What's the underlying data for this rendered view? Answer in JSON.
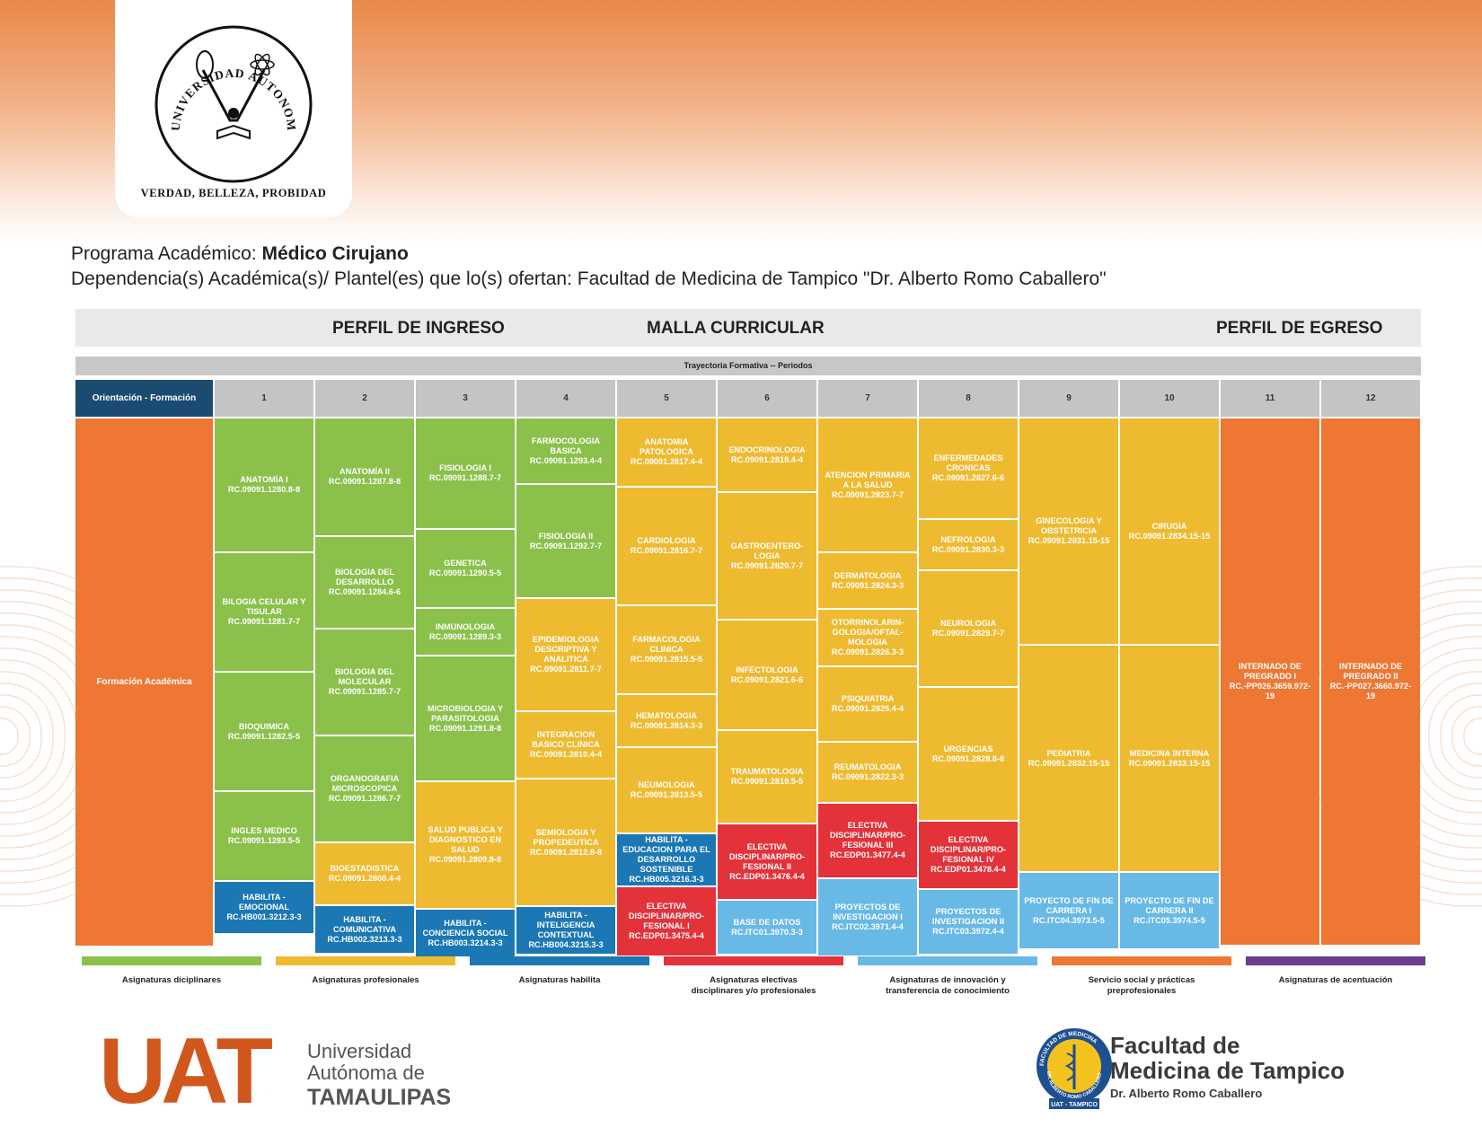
{
  "seal": {
    "ring_text": "UNIVERSIDAD AUTONOMA DE TAMAULIPAS",
    "motto": "VERDAD, BELLEZA, PROBIDAD"
  },
  "program": {
    "label": "Programa Académico:",
    "name": "Médico Cirujano",
    "dependency": "Dependencia(s) Académica(s)/ Plantel(es) que lo(s) ofertan: Facultad de Medicina de Tampico \"Dr. Alberto Romo Caballero\""
  },
  "headers": {
    "perfil_ingreso": "PERFIL DE INGRESO",
    "malla": "MALLA CURRICULAR",
    "perfil_egreso": "PERFIL DE EGRESO",
    "trayectoria": "Trayectoria Formativa -- Periodos",
    "orientacion": "Orientación - Formación",
    "formacion": "Formación Académica"
  },
  "colors": {
    "disciplinar": "#8bc04b",
    "profesional": "#eeba30",
    "habilita": "#1b78b5",
    "electiva": "#e3323a",
    "innovacion": "#69b9e7",
    "servicio": "#ee7734",
    "acentuacion": "#6b3d8f"
  },
  "periods": [
    "1",
    "2",
    "3",
    "4",
    "5",
    "6",
    "7",
    "8",
    "9",
    "10",
    "11",
    "12"
  ],
  "columns": [
    [
      {
        "name": "ANATOMÍA I",
        "code": "RC.09091.1280.8-8",
        "cat": "disciplinar",
        "span": 148
      },
      {
        "name": "BILOGIA CELULAR Y TISULAR",
        "code": "RC.09091.1281.7-7",
        "cat": "disciplinar",
        "span": 131
      },
      {
        "name": "BIOQUIMICA",
        "code": "RC.09091.1282.5-5",
        "cat": "disciplinar",
        "span": 131
      },
      {
        "name": "INGLES MEDICO",
        "code": "RC.09091.1283.5-5",
        "cat": "disciplinar",
        "span": 98
      },
      {
        "name": "HABILITA - EMOCIONAL",
        "code": "RC.HB001.3212.3-3",
        "cat": "habilita",
        "span": 57
      }
    ],
    [
      {
        "name": "ANATOMÍA II",
        "code": "RC.09091.1287.8-8",
        "cat": "disciplinar",
        "span": 130
      },
      {
        "name": "BIOLOGIA DEL DESARROLLO",
        "code": "RC.09091.1284.6-6",
        "cat": "disciplinar",
        "span": 101
      },
      {
        "name": "BIOLOGIA DEL MOLECULAR",
        "code": "RC.09091.1285.7-7",
        "cat": "disciplinar",
        "span": 117
      },
      {
        "name": "ORGANOGRAFIA MICROSCOPICA",
        "code": "RC.09091.1286.7-7",
        "cat": "disciplinar",
        "span": 117
      },
      {
        "name": "BIOESTADISTICA",
        "code": "RC.09091.2808.4-4",
        "cat": "profesional",
        "span": 68
      },
      {
        "name": "HABILITA - COMUNICATIVA",
        "code": "RC.HB002.3213.3-3",
        "cat": "habilita",
        "span": 52
      }
    ],
    [
      {
        "name": "FISIOLOGIA I",
        "code": "RC.09091.1288.7-7",
        "cat": "disciplinar",
        "span": 122
      },
      {
        "name": "GENETICA",
        "code": "RC.09091.1290.5-5",
        "cat": "disciplinar",
        "span": 86
      },
      {
        "name": "INMUNOLOGIA",
        "code": "RC.09091.1289.3-3",
        "cat": "disciplinar",
        "span": 51
      },
      {
        "name": "MICROBIOLOGIA Y PARASITOLOGIA",
        "code": "RC.09091.1291.8-8",
        "cat": "disciplinar",
        "span": 138
      },
      {
        "name": "SALUD PUBLICA Y DIAGNOSTICO EN SALUD",
        "code": "RC.09091.2809.8-8",
        "cat": "profesional",
        "span": 140
      },
      {
        "name": "HABILITA - CONCIENCIA SOCIAL",
        "code": "RC.HB003.3214.3-3",
        "cat": "habilita",
        "span": 52
      }
    ],
    [
      {
        "name": "FARMOCOLOGIA BASICA",
        "code": "RC.09091.1293.4-4",
        "cat": "disciplinar",
        "span": 72
      },
      {
        "name": "FISIOLOGIA II",
        "code": "RC.09091.1292.7-7",
        "cat": "disciplinar",
        "span": 125
      },
      {
        "name": "EPIDEMIOLOGIA DESCRIPTIVA Y ANALITICA",
        "code": "RC.09091.2811.7-7",
        "cat": "profesional",
        "span": 124
      },
      {
        "name": "INTEGRACION BASICO CLINICA",
        "code": "RC.09091.2810.4-4",
        "cat": "profesional",
        "span": 73
      },
      {
        "name": "SEMIOLOGIA Y PROPEDEUTICA",
        "code": "RC.09091.2812.8-8",
        "cat": "profesional",
        "span": 140
      },
      {
        "name": "HABILITA - INTELIGENCIA CONTEXTUAL",
        "code": "RC.HB004.3215.3-3",
        "cat": "habilita",
        "span": 52
      }
    ],
    [
      {
        "name": "ANATOMIA PATOLOGICA",
        "code": "RC.09091.2817.4-4",
        "cat": "profesional",
        "span": 75
      },
      {
        "name": "CARDIOLOGIA",
        "code": "RC.09091.2816.7-7",
        "cat": "profesional",
        "span": 130
      },
      {
        "name": "FARMACOLOGIA CLINICA",
        "code": "RC.09091.2815.5-5",
        "cat": "profesional",
        "span": 97
      },
      {
        "name": "HEMATOLOGIA",
        "code": "RC.09091.2814.3-3",
        "cat": "profesional",
        "span": 57
      },
      {
        "name": "NEUMOLOGIA",
        "code": "RC.09091.2813.5-5",
        "cat": "profesional",
        "span": 94
      },
      {
        "name": "HABILITA - EDUCACION PARA EL DESARROLLO SOSTENIBLE",
        "code": "RC.HB005.3216.3-3",
        "cat": "habilita",
        "span": 57
      },
      {
        "name": "ELECTIVA DISCIPLINAR/PRO-FESIONAL I",
        "code": "RC.EDP01.3475.4-4",
        "cat": "electiva",
        "span": 76
      }
    ],
    [
      {
        "name": "ENDOCRINOLOGIA",
        "code": "RC.09091.2818.4-4",
        "cat": "profesional",
        "span": 81
      },
      {
        "name": "GASTROENTERO-LOGIA",
        "code": "RC.09091.2820.7-7",
        "cat": "profesional",
        "span": 140
      },
      {
        "name": "INFECTOLOGIA",
        "code": "RC.09091.2821.6-6",
        "cat": "profesional",
        "span": 121
      },
      {
        "name": "TRAUMATOLOGIA",
        "code": "RC.09091.2819.5-5",
        "cat": "profesional",
        "span": 102
      },
      {
        "name": "ELECTIVA DISCIPLINAR/PRO-FESIONAL II",
        "code": "RC.EDP01.3476.4-4",
        "cat": "electiva",
        "span": 83
      },
      {
        "name": "BASE DE DATOS",
        "code": "RC.ITC01.3970.3-3",
        "cat": "innovacion",
        "span": 59
      }
    ],
    [
      {
        "name": "ATENCION PRIMARIA A LA SALUD",
        "code": "RC.09091.2823.7-7",
        "cat": "profesional",
        "span": 148
      },
      {
        "name": "DERMATOLOGIA",
        "code": "RC.09091.2824.3-3",
        "cat": "profesional",
        "span": 61
      },
      {
        "name": "OTORRINOLARIN-GOLOGIA/OFTAL-MOLOGIA",
        "code": "RC.09091.2826.3-3",
        "cat": "profesional",
        "span": 62
      },
      {
        "name": "PSIQUIATRIA",
        "code": "RC.09091.2825.4-4",
        "cat": "profesional",
        "span": 82
      },
      {
        "name": "REUMATOLOGIA",
        "code": "RC.09091.2822.3-3",
        "cat": "profesional",
        "span": 66
      },
      {
        "name": "ELECTIVA DISCIPLINAR/PRO-FESIONAL III",
        "code": "RC.EDP01.3477.4-4",
        "cat": "electiva",
        "span": 82
      },
      {
        "name": "PROYECTOS DE INVESTIGACION I",
        "code": "RC.ITC02.3971.4-4",
        "cat": "innovacion",
        "span": 85
      }
    ],
    [
      {
        "name": "ENFERMEDADES CRONICAS",
        "code": "RC.09091.2827.6-6",
        "cat": "profesional",
        "span": 111
      },
      {
        "name": "NEFROLOGIA",
        "code": "RC.09091.2830.3-3",
        "cat": "profesional",
        "span": 55
      },
      {
        "name": "NEUROLOGIA",
        "code": "RC.09091.2829.7-7",
        "cat": "profesional",
        "span": 128
      },
      {
        "name": "URGENCIAS",
        "code": "RC.09091.2828.8-8",
        "cat": "profesional",
        "span": 147
      },
      {
        "name": "ELECTIVA DISCIPLINAR/PRO-FESIONAL IV",
        "code": "RC.EDP01.3478.4-4",
        "cat": "electiva",
        "span": 74
      },
      {
        "name": "PROYECTOS DE INVESTIGACION II",
        "code": "RC.ITC03.3972.4-4",
        "cat": "innovacion",
        "span": 71
      }
    ],
    [
      {
        "name": "GINECOLOGIA Y OBSTETRICIA",
        "code": "RC.09091.2831.15-15",
        "cat": "profesional",
        "span": 251
      },
      {
        "name": "PEDIATRIA",
        "code": "RC.09091.2832.15-15",
        "cat": "profesional",
        "span": 251
      },
      {
        "name": "PROYECTO DE FIN DE CARRERA I",
        "code": "RC.ITC04.3973.5-5",
        "cat": "innovacion",
        "span": 84
      }
    ],
    [
      {
        "name": "CIRUGIA",
        "code": "RC.09091.2834.15-15",
        "cat": "profesional",
        "span": 251
      },
      {
        "name": "MEDICINA INTERNA",
        "code": "RC.09091.2833.15-15",
        "cat": "profesional",
        "span": 251
      },
      {
        "name": "PROYECTO DE FIN DE CARRERA II",
        "code": "RC.ITC05.3974.5-5",
        "cat": "innovacion",
        "span": 84
      }
    ],
    [
      {
        "name": "INTERNADO DE PREGRADO I",
        "code": "RC.-PP026.3659.972-19",
        "cat": "servicio",
        "span": 586
      }
    ],
    [
      {
        "name": "INTERNADO DE PREGRADO II",
        "code": "RC.-PP027.3660.972-19",
        "cat": "servicio",
        "span": 586
      }
    ]
  ],
  "legend": [
    {
      "label": "Asignaturas diciplinares",
      "cat": "disciplinar"
    },
    {
      "label": "Asignaturas profesionales",
      "cat": "profesional"
    },
    {
      "label": "Asignaturas habilita",
      "cat": "habilita"
    },
    {
      "label": "Asignaturas electivas\ndisciplinares y/o profesionales",
      "cat": "electiva"
    },
    {
      "label": "Asignaturas de innovación y\ntransferencia de conocimiento",
      "cat": "innovacion"
    },
    {
      "label": "Servicio social y prácticas\npreprofesionales",
      "cat": "servicio"
    },
    {
      "label": "Asignaturas de acentuación",
      "cat": "acentuacion"
    }
  ],
  "footer": {
    "uat_mark": "UAT",
    "uat_line1": "Universidad",
    "uat_line2": "Autónoma de",
    "uat_line3": "TAMAULIPAS",
    "fac_line1": "Facultad de",
    "fac_line2": "Medicina de Tampico",
    "fac_line3": "Dr. Alberto Romo Caballero",
    "fac_seal_text": "FACULTAD DE MEDICINA",
    "fac_seal_text2": "DR. ALBERTO ROMO CABALLERO",
    "fac_seal_bottom": "UAT - TAMPICO"
  }
}
